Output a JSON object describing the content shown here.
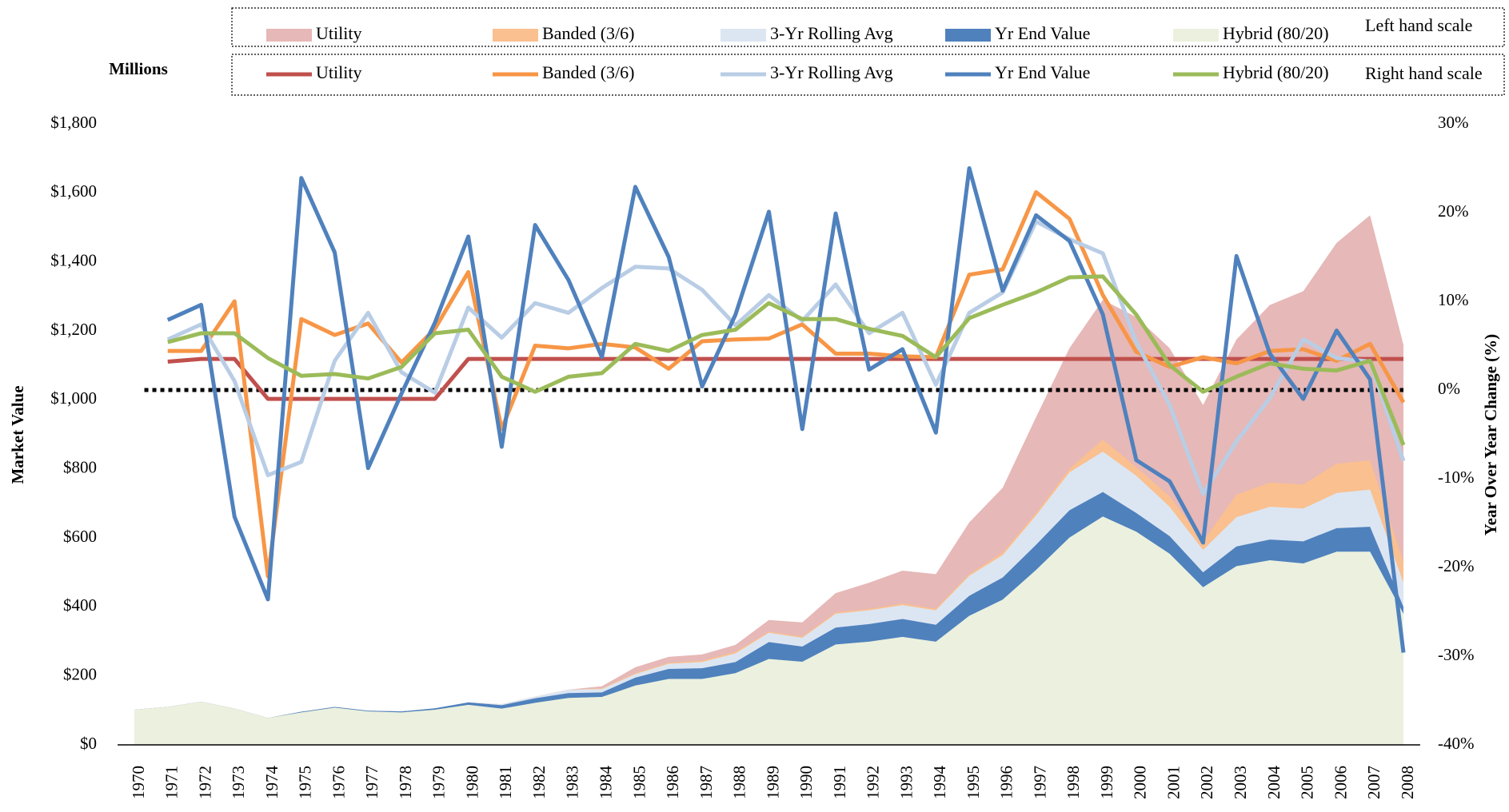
{
  "chart_data": {
    "type": "line",
    "units_label": "Millions",
    "y_label": "Market Value",
    "y2_label": "Year Over Year Change (%)",
    "legend": "top",
    "legend_notes": [
      "Left hand scale",
      "Right hand scale"
    ],
    "categories": [
      "1970",
      "1971",
      "1972",
      "1973",
      "1974",
      "1975",
      "1976",
      "1977",
      "1978",
      "1979",
      "1980",
      "1981",
      "1982",
      "1983",
      "1984",
      "1985",
      "1986",
      "1987",
      "1988",
      "1989",
      "1990",
      "1991",
      "1992",
      "1993",
      "1994",
      "1995",
      "1996",
      "1997",
      "1998",
      "1999",
      "2000",
      "2001",
      "2002",
      "2003",
      "2004",
      "2005",
      "2006",
      "2007",
      "2008"
    ],
    "ylim": [
      0,
      1800
    ],
    "yticks": [
      {
        "value": 0,
        "label": "$0"
      },
      {
        "value": 200,
        "label": "$200"
      },
      {
        "value": 400,
        "label": "$400"
      },
      {
        "value": 600,
        "label": "$600"
      },
      {
        "value": 800,
        "label": "$800"
      },
      {
        "value": 1000,
        "label": "$1,000"
      },
      {
        "value": 1200,
        "label": "$1,200"
      },
      {
        "value": 1400,
        "label": "$1,400"
      },
      {
        "value": 1600,
        "label": "$1,600"
      },
      {
        "value": 1800,
        "label": "$1,800"
      }
    ],
    "y2lim": [
      -40,
      30
    ],
    "y2ticks": [
      {
        "value": -40,
        "label": "-40%"
      },
      {
        "value": -30,
        "label": "-30%"
      },
      {
        "value": -20,
        "label": "-20%"
      },
      {
        "value": -10,
        "label": "-10%"
      },
      {
        "value": 0,
        "label": "0%"
      },
      {
        "value": 10,
        "label": "10%"
      },
      {
        "value": 20,
        "label": "20%"
      },
      {
        "value": 30,
        "label": "30%"
      }
    ],
    "reference_line_y2": 0,
    "series": [
      {
        "name": "Utility",
        "type": "area",
        "axis": "y",
        "color": "#e6b8b7",
        "values": [
          102,
          110,
          125,
          105,
          78,
          96,
          110,
          99,
          97,
          106,
          123,
          118,
          140,
          160,
          170,
          225,
          255,
          262,
          290,
          362,
          355,
          440,
          470,
          505,
          495,
          645,
          745,
          950,
          1150,
          1290,
          1240,
          1150,
          985,
          1175,
          1275,
          1315,
          1455,
          1535,
          1160
        ]
      },
      {
        "name": "Banded (3/6)",
        "type": "area",
        "axis": "y",
        "color": "#fac090",
        "values": [
          102,
          110,
          125,
          105,
          78,
          96,
          110,
          99,
          97,
          106,
          123,
          118,
          140,
          160,
          164,
          208,
          238,
          244,
          270,
          328,
          314,
          384,
          394,
          410,
          395,
          495,
          558,
          672,
          800,
          885,
          805,
          720,
          590,
          725,
          760,
          755,
          815,
          825,
          530
        ]
      },
      {
        "name": "3-Yr Rolling Avg",
        "type": "area",
        "axis": "y",
        "color": "#dce6f2",
        "values": [
          102,
          110,
          125,
          105,
          78,
          96,
          110,
          99,
          97,
          106,
          123,
          118,
          140,
          160,
          162,
          205,
          235,
          240,
          265,
          325,
          310,
          380,
          390,
          405,
          390,
          490,
          550,
          665,
          790,
          850,
          780,
          690,
          565,
          660,
          690,
          685,
          730,
          740,
          470
        ]
      },
      {
        "name": "Yr End Value",
        "type": "area",
        "axis": "y",
        "color": "#4f81bd",
        "values": [
          102,
          110,
          125,
          105,
          78,
          96,
          110,
          99,
          97,
          106,
          123,
          115,
          135,
          150,
          152,
          195,
          220,
          222,
          240,
          298,
          285,
          340,
          350,
          365,
          348,
          432,
          485,
          580,
          680,
          733,
          672,
          605,
          500,
          575,
          595,
          590,
          628,
          632,
          400
        ]
      },
      {
        "name": "Hybrid (80/20)",
        "type": "area",
        "axis": "y",
        "color": "#ebf1de",
        "values": [
          102,
          110,
          125,
          105,
          78,
          94,
          108,
          97,
          94,
          102,
          116,
          105,
          122,
          136,
          139,
          172,
          191,
          191,
          208,
          249,
          241,
          291,
          299,
          313,
          299,
          374,
          421,
          507,
          601,
          662,
          618,
          554,
          457,
          518,
          535,
          526,
          560,
          560,
          380
        ]
      },
      {
        "name": "Utility",
        "type": "line",
        "axis": "y2",
        "color": "#c0504d",
        "values": [
          null,
          3.2,
          3.5,
          3.5,
          -1,
          -1,
          -1,
          -1,
          -1,
          -1,
          3.5,
          3.5,
          3.5,
          3.5,
          3.5,
          3.5,
          3.5,
          3.5,
          3.5,
          3.5,
          3.5,
          3.5,
          3.5,
          3.5,
          3.5,
          3.5,
          3.5,
          3.5,
          3.5,
          3.5,
          3.5,
          3.5,
          3.5,
          3.5,
          3.5,
          3.5,
          3.5,
          3.5,
          3.5
        ]
      },
      {
        "name": "Banded (3/6)",
        "type": "line",
        "axis": "y2",
        "color": "#f79646",
        "values": [
          null,
          4.4,
          4.4,
          10,
          -21,
          8,
          6.2,
          7.5,
          3.1,
          6.9,
          13.3,
          -4.4,
          5,
          4.7,
          5.2,
          4.8,
          2.4,
          5.5,
          5.7,
          5.8,
          7.4,
          4.1,
          4.1,
          3.8,
          3.7,
          13,
          13.6,
          22.3,
          19.3,
          10.7,
          4.3,
          2.6,
          3.7,
          3,
          4.4,
          4.6,
          3.3,
          5.2,
          -1.4
        ]
      },
      {
        "name": "3-Yr Rolling Avg",
        "type": "line",
        "axis": "y2",
        "color": "#b9cde5",
        "values": [
          null,
          5.7,
          7.4,
          1,
          -9.6,
          -8.1,
          3.3,
          8.7,
          2,
          -0.3,
          9.3,
          5.9,
          9.8,
          8.7,
          11.5,
          13.9,
          13.7,
          11.3,
          7.3,
          10.7,
          7.8,
          11.9,
          6.4,
          8.7,
          0.6,
          8.7,
          11,
          19,
          17,
          15.4,
          5.4,
          -1.7,
          -11.7,
          -5.8,
          -0.9,
          5.7,
          3.6,
          3.2,
          -8
        ]
      },
      {
        "name": "Yr End Value",
        "type": "line",
        "axis": "y2",
        "color": "#4f81bd",
        "values": [
          null,
          7.9,
          9.6,
          -14.3,
          -23.6,
          23.9,
          15.5,
          -8.8,
          -0.4,
          7.6,
          17.3,
          -6.4,
          18.6,
          12.4,
          3.7,
          22.9,
          15,
          0.4,
          8.5,
          20.1,
          -4.4,
          19.9,
          2.3,
          4.6,
          -4.8,
          25,
          11.2,
          19.7,
          16.8,
          8.5,
          -7.9,
          -10.3,
          -17.2,
          15.1,
          4.1,
          -1,
          6.7,
          1.2,
          -29.6
        ]
      },
      {
        "name": "Hybrid (80/20)",
        "type": "line",
        "axis": "y2",
        "color": "#9bbb59",
        "values": [
          null,
          5.4,
          6.4,
          6.4,
          3.6,
          1.6,
          1.8,
          1.3,
          2.6,
          6.4,
          6.8,
          1.5,
          -0.2,
          1.5,
          1.9,
          5.2,
          4.4,
          6.2,
          6.8,
          9.8,
          8,
          8,
          6.9,
          6.1,
          3.7,
          8.1,
          9.6,
          11,
          12.7,
          12.8,
          8.5,
          2.8,
          -0.2,
          1.5,
          3,
          2.4,
          2.2,
          3.3,
          -6.2
        ]
      }
    ]
  }
}
